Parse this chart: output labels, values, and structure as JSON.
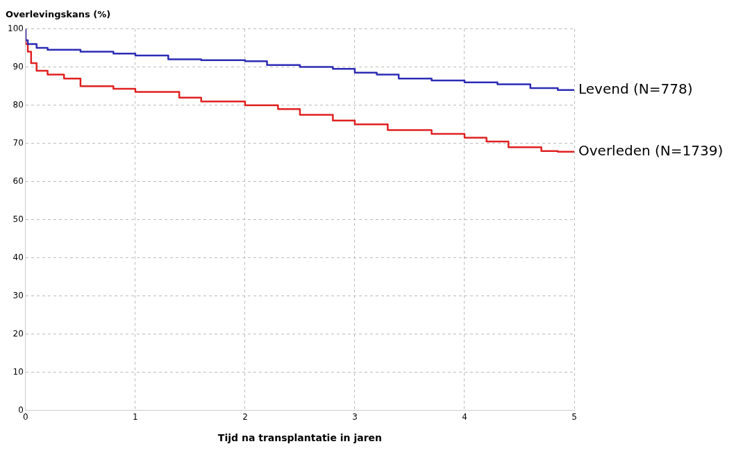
{
  "chart_data": {
    "type": "step",
    "ylabel": "Overlevingskans (%)",
    "xlabel": "Tijd na transplantatie in jaren",
    "xlim": [
      0,
      5
    ],
    "xticks": [
      0,
      1,
      2,
      3,
      4,
      5
    ],
    "ylim": [
      0,
      100
    ],
    "yticks": [
      0,
      10,
      20,
      30,
      40,
      50,
      60,
      70,
      80,
      90,
      100
    ],
    "grid": true,
    "legend": false,
    "series": [
      {
        "name": "Levend (N=778)",
        "color": "#2b2bb5",
        "x": [
          0,
          0.02,
          0.1,
          0.2,
          0.5,
          0.8,
          1,
          1.3,
          1.6,
          2,
          2.2,
          2.5,
          2.8,
          3,
          3.2,
          3.4,
          3.7,
          4,
          4.3,
          4.6,
          4.85,
          5
        ],
        "values": [
          100,
          97,
          96,
          95,
          94.5,
          94,
          93.5,
          93,
          92,
          91.8,
          91.5,
          90.5,
          90,
          89.5,
          88.5,
          88,
          87,
          86.5,
          86,
          85.5,
          84.5,
          84
        ]
      },
      {
        "name": "Overleden (N=1739)",
        "color": "#e02020",
        "x": [
          0,
          0.02,
          0.05,
          0.1,
          0.2,
          0.35,
          0.5,
          0.8,
          1,
          1.4,
          1.6,
          2,
          2.3,
          2.5,
          2.8,
          3,
          3.3,
          3.7,
          4,
          4.2,
          4.4,
          4.7,
          4.85,
          5
        ],
        "values": [
          100,
          96,
          94,
          91,
          89,
          88,
          87,
          85,
          84.3,
          83.5,
          82,
          81,
          80,
          79,
          77.5,
          76,
          75,
          73.5,
          72.5,
          71.5,
          70.5,
          69,
          68,
          67.8
        ]
      }
    ]
  }
}
